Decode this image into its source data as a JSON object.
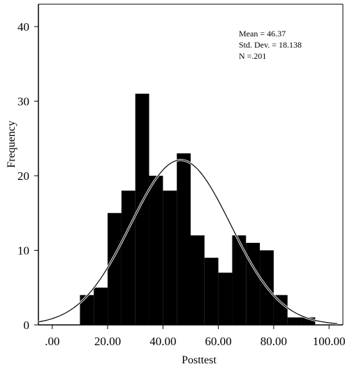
{
  "chart_data": {
    "type": "bar",
    "xlabel": "Posttest",
    "ylabel": "Frequency",
    "xlim": [
      -5,
      105
    ],
    "ylim": [
      0,
      43
    ],
    "x_ticks": [
      0,
      20,
      40,
      60,
      80,
      100
    ],
    "x_tick_labels": [
      ".00",
      "20.00",
      "40.00",
      "60.00",
      "80.00",
      "100.00"
    ],
    "y_ticks": [
      0,
      10,
      20,
      30,
      40
    ],
    "y_tick_labels": [
      "0",
      "10",
      "20",
      "30",
      "40"
    ],
    "bin_width": 5,
    "bins": [
      {
        "start": 10,
        "count": 4
      },
      {
        "start": 15,
        "count": 5
      },
      {
        "start": 20,
        "count": 15
      },
      {
        "start": 25,
        "count": 18
      },
      {
        "start": 30,
        "count": 31
      },
      {
        "start": 35,
        "count": 20
      },
      {
        "start": 40,
        "count": 18
      },
      {
        "start": 45,
        "count": 23
      },
      {
        "start": 50,
        "count": 12
      },
      {
        "start": 55,
        "count": 9
      },
      {
        "start": 60,
        "count": 7
      },
      {
        "start": 65,
        "count": 12
      },
      {
        "start": 70,
        "count": 11
      },
      {
        "start": 75,
        "count": 10
      },
      {
        "start": 80,
        "count": 4
      },
      {
        "start": 85,
        "count": 1
      },
      {
        "start": 90,
        "count": 1
      }
    ],
    "normal_curve": {
      "mean": 46.37,
      "sd": 18.138,
      "n": 201
    },
    "stats_labels": [
      "Mean = 46.37",
      "Std. Dev. = 18.138",
      "N =.201"
    ],
    "grid": false,
    "colors": {
      "bars": "#000000",
      "curve": "#000000",
      "background": "#ffffff"
    }
  }
}
